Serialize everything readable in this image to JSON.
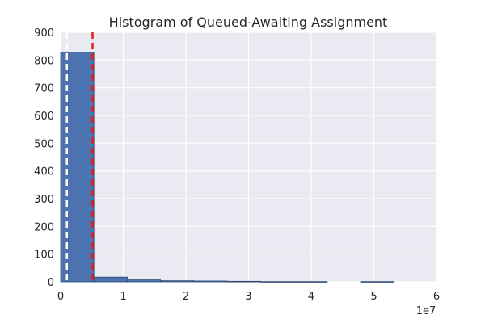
{
  "chart_data": {
    "type": "bar",
    "title": "Histogram of Queued-Awaiting Assignment",
    "xlabel": "",
    "ylabel": "",
    "x_offset_label": "1e7",
    "xlim": [
      0,
      6
    ],
    "ylim": [
      0,
      900
    ],
    "x_ticks": [
      0,
      1,
      2,
      3,
      4,
      5,
      6
    ],
    "x_tick_labels": [
      "0",
      "1",
      "2",
      "3",
      "4",
      "5",
      "6"
    ],
    "y_ticks": [
      0,
      100,
      200,
      300,
      400,
      500,
      600,
      700,
      800,
      900
    ],
    "y_tick_labels": [
      "0",
      "100",
      "200",
      "300",
      "400",
      "500",
      "600",
      "700",
      "800",
      "900"
    ],
    "bins": [
      {
        "x0": 0.0,
        "x1": 0.532,
        "count": 828
      },
      {
        "x0": 0.532,
        "x1": 1.064,
        "count": 17
      },
      {
        "x0": 1.064,
        "x1": 1.596,
        "count": 7
      },
      {
        "x0": 1.596,
        "x1": 2.128,
        "count": 4
      },
      {
        "x0": 2.128,
        "x1": 2.66,
        "count": 3
      },
      {
        "x0": 2.66,
        "x1": 3.192,
        "count": 2
      },
      {
        "x0": 3.192,
        "x1": 3.724,
        "count": 1
      },
      {
        "x0": 3.724,
        "x1": 4.256,
        "count": 1
      },
      {
        "x0": 4.256,
        "x1": 4.788,
        "count": 0
      },
      {
        "x0": 4.788,
        "x1": 5.32,
        "count": 1
      }
    ],
    "vertical_lines": [
      {
        "x": 0.1,
        "color": "#ffffff",
        "style": "dashed"
      },
      {
        "x": 0.51,
        "color": "#e41a1c",
        "style": "dashed"
      }
    ],
    "grid": true,
    "colors": {
      "bar": "#4c72b0",
      "bar_edge": "#2e4a78",
      "axes_bg": "#eaeaf2",
      "grid": "#ffffff"
    }
  }
}
